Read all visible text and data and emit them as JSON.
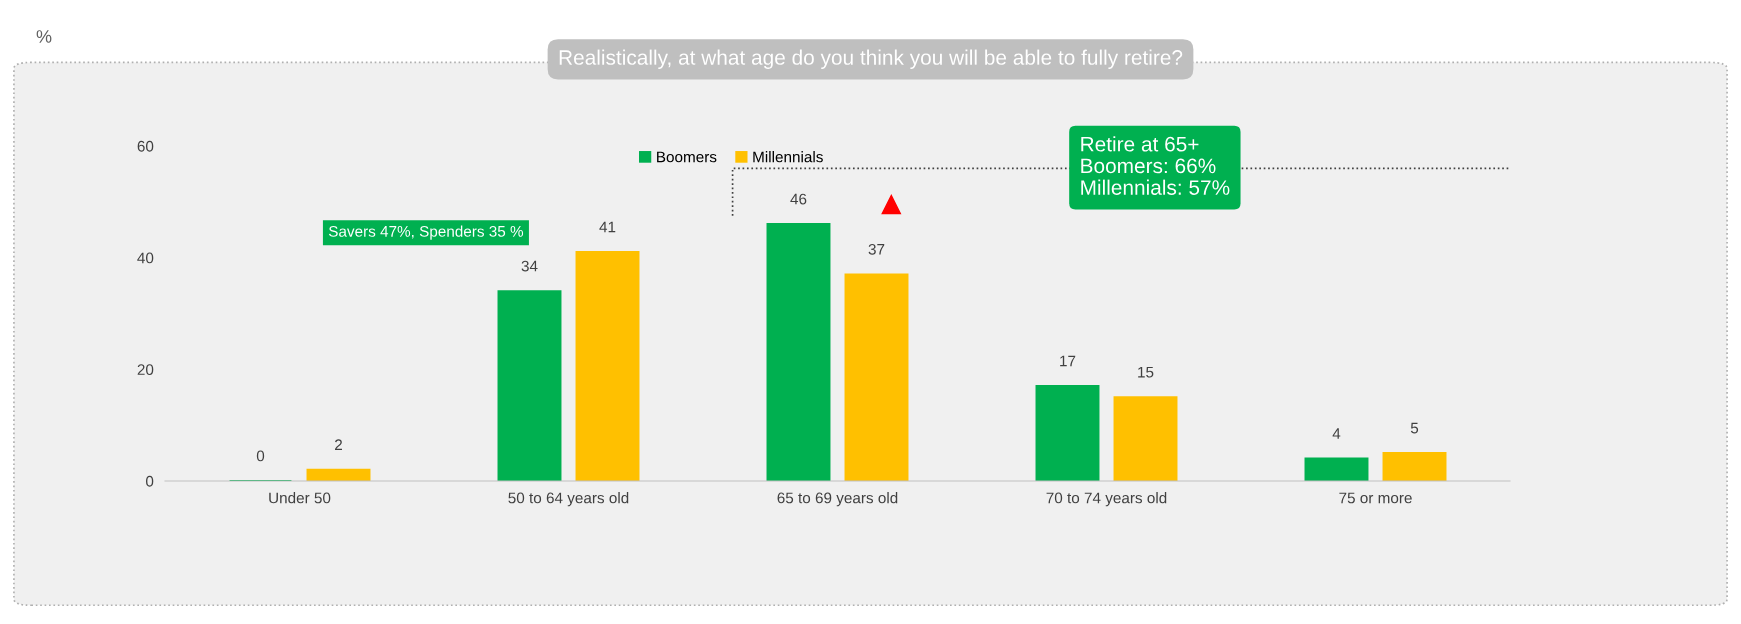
{
  "chart_data": {
    "type": "bar",
    "title": "Realistically, at what age do you think you will be able to fully retire?",
    "categories": [
      "Under 50",
      "50 to 64 years old",
      "65 to 69 years old",
      "70 to 74 years old",
      "75 or more"
    ],
    "series": [
      {
        "name": "Boomers",
        "color": "#00b050",
        "values": [
          0,
          34,
          46,
          17,
          4
        ]
      },
      {
        "name": "Millennials",
        "color": "#ffc000",
        "values": [
          2,
          41,
          37,
          15,
          5
        ]
      }
    ],
    "ylim": [
      0,
      60
    ],
    "yticks": [
      0,
      20,
      40,
      60
    ],
    "grid": false,
    "legend": "top",
    "data_labels": true,
    "annotations": [
      "Savers 47%, Spenders 35 %",
      "Retire at 65+\nBoomers: 66%\nMillennials: 57%",
      "%"
    ]
  }
}
